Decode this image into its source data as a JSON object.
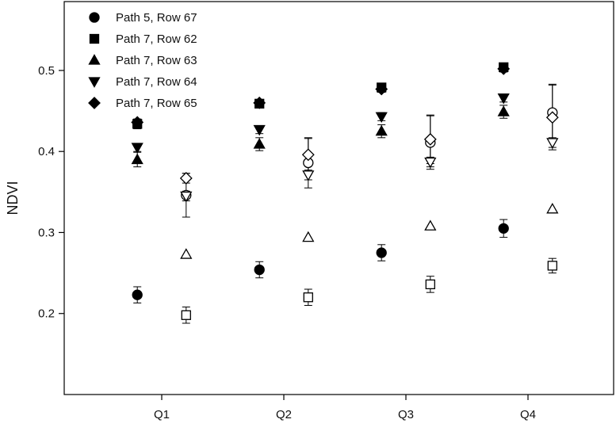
{
  "chart_data": {
    "type": "scatter",
    "title": "",
    "xlabel": "",
    "ylabel": "NDVI",
    "categories": [
      "Q1",
      "Q2",
      "Q3",
      "Q4"
    ],
    "ylim": [
      0.1,
      0.585
    ],
    "yticks": [
      "0.2",
      "0.3",
      "0.4",
      "0.5"
    ],
    "grid": false,
    "legend_position": "top-left",
    "series": [
      {
        "name": "Path 5, Row 67",
        "marker": "circle",
        "filled": true,
        "offset": -0.25,
        "values": [
          0.223,
          0.254,
          0.275,
          0.305
        ],
        "errors": [
          0.01,
          0.01,
          0.01,
          0.011
        ]
      },
      {
        "name": "Path 7, Row 62",
        "marker": "square",
        "filled": true,
        "offset": -0.25,
        "values": [
          0.434,
          0.459,
          0.479,
          0.504
        ],
        "errors": [
          0.006,
          0.005,
          0.005,
          0.004
        ]
      },
      {
        "name": "Path 7, Row 63",
        "marker": "triangle-up",
        "filled": true,
        "offset": -0.25,
        "values": [
          0.39,
          0.409,
          0.425,
          0.449
        ],
        "errors": [
          0.009,
          0.008,
          0.008,
          0.008
        ]
      },
      {
        "name": "Path 7, Row 64",
        "marker": "triangle-down",
        "filled": true,
        "offset": -0.25,
        "values": [
          0.405,
          0.427,
          0.443,
          0.466
        ],
        "errors": [
          0.005,
          0.005,
          0.005,
          0.005
        ]
      },
      {
        "name": "Path 7, Row 65",
        "marker": "diamond",
        "filled": true,
        "offset": -0.25,
        "values": [
          0.436,
          0.46,
          0.477,
          0.502
        ],
        "errors": [
          0.004,
          0.004,
          0.004,
          0.004
        ]
      },
      {
        "name": "",
        "marker": "circle",
        "filled": false,
        "offset": 0.25,
        "values": [
          0.346,
          0.386,
          0.411,
          0.448
        ],
        "errors": [
          0.027,
          0.031,
          0.033,
          0.035
        ]
      },
      {
        "name": "",
        "marker": "square",
        "filled": false,
        "offset": 0.25,
        "values": [
          0.198,
          0.22,
          0.236,
          0.259
        ],
        "errors": [
          0.01,
          0.01,
          0.01,
          0.009
        ]
      },
      {
        "name": "",
        "marker": "triangle-up",
        "filled": false,
        "offset": 0.25,
        "values": [
          0.273,
          0.294,
          0.308,
          0.329
        ],
        "errors": [
          0,
          0,
          0,
          0
        ]
      },
      {
        "name": "",
        "marker": "triangle-down",
        "filled": false,
        "offset": 0.25,
        "values": [
          0.345,
          0.371,
          0.387,
          0.411
        ],
        "errors": [
          0.006,
          0.006,
          0.006,
          0.006
        ]
      },
      {
        "name": "",
        "marker": "diamond",
        "filled": false,
        "offset": 0.25,
        "values": [
          0.367,
          0.396,
          0.415,
          0.442
        ],
        "errors": [
          0.006,
          0.02,
          0.03,
          0.04
        ]
      }
    ]
  }
}
